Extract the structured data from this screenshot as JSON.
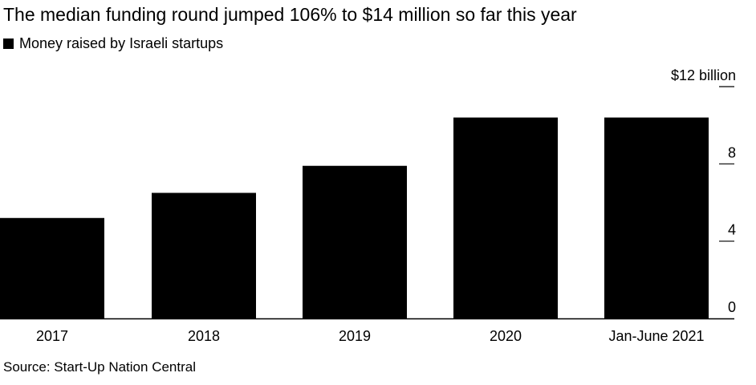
{
  "chart_data": {
    "type": "bar",
    "title": "The median funding round jumped 106% to $14 million so far this year",
    "legend": [
      {
        "label": "Money raised by Israeli startups",
        "color": "#000000"
      }
    ],
    "categories": [
      "2017",
      "2018",
      "2019",
      "2020",
      "Jan-June 2021"
    ],
    "values": [
      5.2,
      6.5,
      7.9,
      10.4,
      10.4
    ],
    "ylim": [
      0,
      12
    ],
    "yticks": [
      {
        "value": 0,
        "label": "0"
      },
      {
        "value": 4,
        "label": "4"
      },
      {
        "value": 8,
        "label": "8"
      },
      {
        "value": 12,
        "label": "$12 billion"
      }
    ],
    "xlabel": "",
    "ylabel": "",
    "grid": false,
    "bar_color": "#000000",
    "source": "Source: Start-Up Nation Central"
  }
}
